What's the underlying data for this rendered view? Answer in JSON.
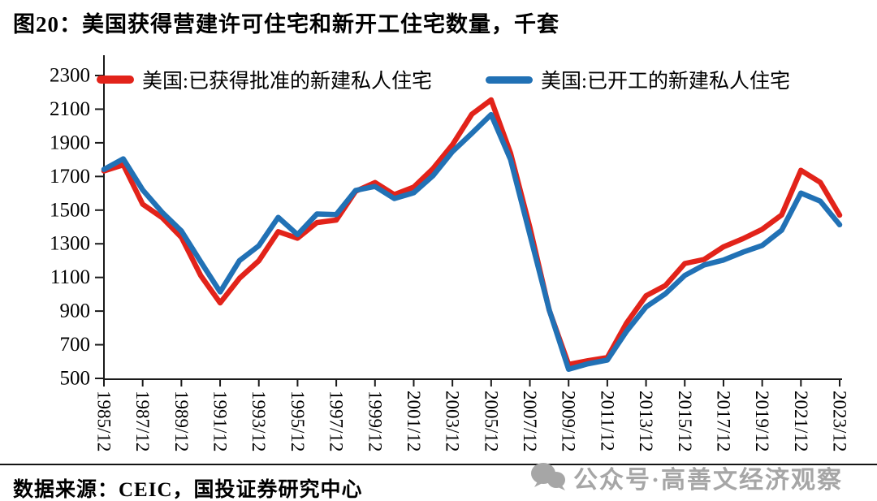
{
  "page": {
    "background": "#ffffff"
  },
  "title": "图20：美国获得营建许可住宅和新开工住宅数量，千套",
  "source_note": "数据来源：CEIC，国投证券研究中心",
  "watermark": {
    "icon": "wechat-icon",
    "text": "公众号·高善文经济观察",
    "color": "#a6a6a6"
  },
  "chart_data": {
    "type": "line",
    "title": "图20：美国获得营建许可住宅和新开工住宅数量，千套",
    "ylabel": "",
    "xlabel": "",
    "ylim": [
      500,
      2300
    ],
    "y_ticks": [
      500,
      700,
      900,
      1100,
      1300,
      1500,
      1700,
      1900,
      2100,
      2300
    ],
    "x_years": [
      1985,
      1986,
      1987,
      1988,
      1989,
      1990,
      1991,
      1992,
      1993,
      1994,
      1995,
      1996,
      1997,
      1998,
      1999,
      2000,
      2001,
      2002,
      2003,
      2004,
      2005,
      2006,
      2007,
      2008,
      2009,
      2010,
      2011,
      2012,
      2013,
      2014,
      2015,
      2016,
      2017,
      2018,
      2019,
      2020,
      2021,
      2022,
      2023
    ],
    "x_tick_labels": [
      "1985/12",
      "1987/12",
      "1989/12",
      "1991/12",
      "1993/12",
      "1995/12",
      "1997/12",
      "1999/12",
      "2001/12",
      "2003/12",
      "2005/12",
      "2007/12",
      "2009/12",
      "2011/12",
      "2013/12",
      "2015/12",
      "2017/12",
      "2019/12",
      "2021/12",
      "2023/12"
    ],
    "grid": false,
    "legend_position": "top",
    "axis_color": "#1a1a1a",
    "series": [
      {
        "name": "美国:已获得批准的新建私人住宅",
        "color": "#e2231a",
        "values": [
          1733,
          1769,
          1535,
          1456,
          1338,
          1111,
          949,
          1095,
          1199,
          1372,
          1333,
          1426,
          1441,
          1612,
          1664,
          1592,
          1637,
          1747,
          1889,
          2070,
          2155,
          1839,
          1398,
          905,
          583,
          605,
          624,
          830,
          991,
          1052,
          1183,
          1207,
          1282,
          1330,
          1386,
          1471,
          1737,
          1665,
          1470
        ]
      },
      {
        "name": "美国:已开工的新建私人住宅",
        "color": "#2171b5",
        "values": [
          1742,
          1805,
          1620,
          1488,
          1376,
          1193,
          1014,
          1200,
          1288,
          1457,
          1354,
          1477,
          1474,
          1617,
          1641,
          1569,
          1603,
          1705,
          1848,
          1956,
          2068,
          1801,
          1355,
          906,
          554,
          587,
          609,
          781,
          925,
          1003,
          1112,
          1174,
          1203,
          1250,
          1290,
          1380,
          1601,
          1553,
          1413
        ]
      }
    ]
  }
}
